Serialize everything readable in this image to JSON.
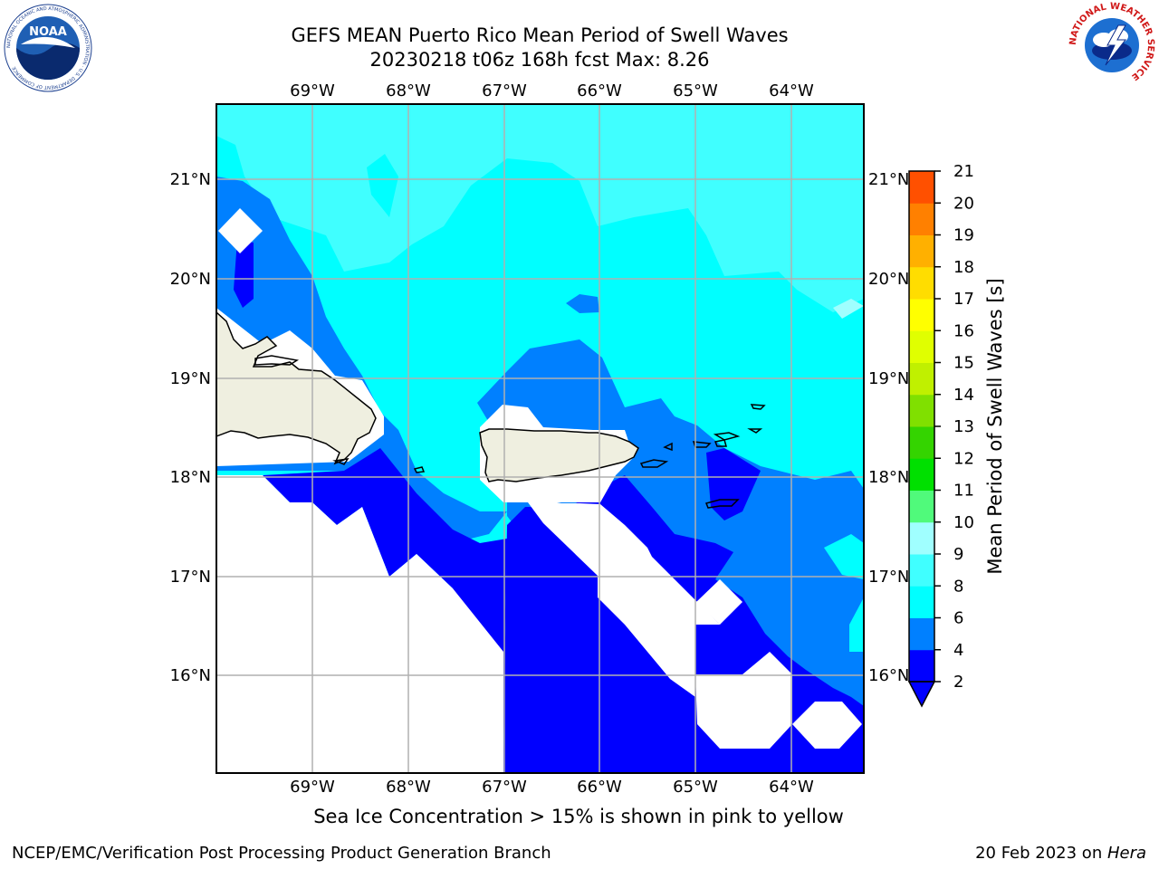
{
  "title": {
    "line1": "GEFS MEAN Puerto Rico Mean Period of Swell Waves",
    "line2": "20230218 t06z 168h fcst   Max: 8.26"
  },
  "map": {
    "longitude_labels": [
      "69°W",
      "68°W",
      "67°W",
      "66°W",
      "65°W",
      "64°W"
    ],
    "latitude_labels": [
      "21°N",
      "20°N",
      "19°N",
      "18°N",
      "17°N",
      "16°N"
    ],
    "extent": {
      "lon": [
        -69.99,
        -63.25
      ],
      "lat": [
        15.0,
        21.75
      ]
    },
    "grid": true
  },
  "colorbar": {
    "label": "Mean Period of Swell Waves [s]",
    "ticks": [
      "2",
      "4",
      "6",
      "8",
      "9",
      "10",
      "11",
      "12",
      "13",
      "14",
      "15",
      "16",
      "17",
      "18",
      "19",
      "20",
      "21"
    ],
    "colors": [
      "#0000ff",
      "#0080ff",
      "#00ffff",
      "#40ffff",
      "#a0ffff",
      "#50fa7b",
      "#00e000",
      "#34d400",
      "#80e000",
      "#c0f000",
      "#e0ff00",
      "#ffff00",
      "#ffdd00",
      "#ffb000",
      "#ff8000",
      "#ff5000",
      "#ff0000"
    ],
    "underflow_color": "#0000ff"
  },
  "caption": "Sea Ice Concentration > 15% is shown in pink to yellow",
  "footer": {
    "left": "NCEP/EMC/Verification Post Processing Product Generation Branch",
    "right_prefix": "20 Feb 2023 on ",
    "right_host": "Hera"
  },
  "logos": {
    "noaa": "NOAA",
    "noaa_ring": "NATIONAL OCEANIC AND ATMOSPHERIC ADMINISTRATION · U.S. DEPARTMENT OF COMMERCE",
    "nws_ring": "NATIONAL WEATHER SERVICE"
  }
}
